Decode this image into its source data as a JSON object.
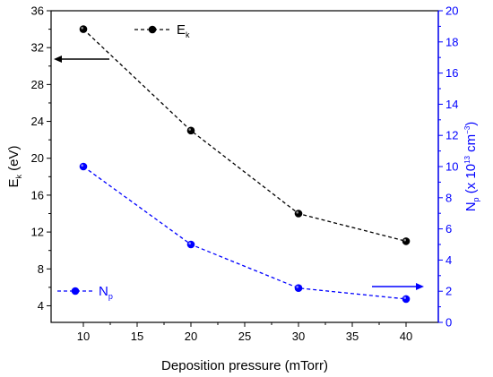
{
  "chart_data": {
    "type": "line",
    "x": [
      10,
      20,
      30,
      40
    ],
    "xlim": [
      7,
      43
    ],
    "xticks": [
      10,
      15,
      20,
      25,
      30,
      35,
      40
    ],
    "xlabel": "Deposition pressure (mTorr)",
    "grid": false,
    "legend": "inside, top-center (Ek) and bottom-left (Np)",
    "left_axis": {
      "label_main": "E",
      "label_sub": "k",
      "label_unit": " (eV)",
      "ylim": [
        2.2,
        36
      ],
      "ticks": [
        4,
        8,
        12,
        16,
        20,
        24,
        28,
        32,
        36
      ],
      "color": "#000000"
    },
    "right_axis": {
      "label_main": "N",
      "label_sub": "p",
      "label_mid": " (x 10",
      "label_sup1": "13",
      "label_cm": " cm",
      "label_sup2": "−3",
      "label_close": ")",
      "ylim": [
        0,
        20
      ],
      "ticks": [
        0,
        2,
        4,
        6,
        8,
        10,
        12,
        14,
        16,
        18,
        20
      ],
      "color": "#0000ff"
    },
    "series": [
      {
        "name_main": "E",
        "name_sub": "k",
        "axis": "left",
        "values": [
          34,
          23,
          14,
          11
        ],
        "color": "#000000"
      },
      {
        "name_main": "N",
        "name_sub": "p",
        "axis": "right",
        "values": [
          10,
          5,
          2.2,
          1.5
        ],
        "color": "#0000ff"
      }
    ]
  }
}
